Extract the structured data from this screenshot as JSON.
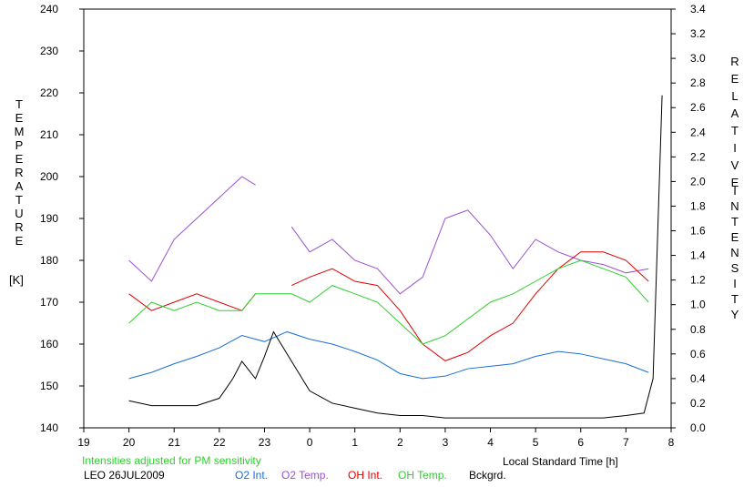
{
  "chart_data": {
    "type": "line",
    "left_axis": {
      "label_letters": [
        "T",
        "E",
        "M",
        "P",
        "E",
        "R",
        "A",
        "T",
        "U",
        "R",
        "E"
      ],
      "unit": "[K]",
      "range": [
        140,
        240
      ],
      "ticks": [
        140,
        150,
        160,
        170,
        180,
        190,
        200,
        210,
        220,
        230,
        240
      ]
    },
    "right_axis": {
      "label_letters_1": [
        "R",
        "E",
        "L",
        "A",
        "T",
        "I",
        "V",
        "E"
      ],
      "label_letters_2": [
        "I",
        "N",
        "T",
        "E",
        "N",
        "S",
        "I",
        "T",
        "Y"
      ],
      "range": [
        0.0,
        3.4
      ],
      "ticks": [
        "0.0",
        "0.2",
        "0.4",
        "0.6",
        "0.8",
        "1.0",
        "1.2",
        "1.4",
        "1.6",
        "1.8",
        "2.0",
        "2.2",
        "2.4",
        "2.6",
        "2.8",
        "3.0",
        "3.2",
        "3.4"
      ]
    },
    "x_axis": {
      "label": "Local Standard Time [h]",
      "range": [
        19,
        32
      ],
      "tick_labels": [
        "19",
        "20",
        "21",
        "22",
        "23",
        "0",
        "1",
        "2",
        "3",
        "4",
        "5",
        "6",
        "7",
        "8"
      ]
    },
    "note": "Intensities adjusted for PM sensitivity",
    "station": "LEO 26JUL2009",
    "series": [
      {
        "name": "O2 Int.",
        "color": "#1a6fd6",
        "axis": "right",
        "x": [
          20.0,
          20.5,
          21.0,
          21.5,
          22.0,
          22.5,
          23.0,
          23.5,
          24.0,
          24.5,
          25.0,
          25.5,
          26.0,
          26.5,
          27.0,
          27.5,
          28.0,
          28.5,
          29.0,
          29.5,
          30.0,
          30.5,
          31.0,
          31.5
        ],
        "y": [
          0.4,
          0.45,
          0.52,
          0.58,
          0.65,
          0.75,
          0.7,
          0.78,
          0.72,
          0.68,
          0.62,
          0.55,
          0.44,
          0.4,
          0.42,
          0.48,
          0.5,
          0.52,
          0.58,
          0.62,
          0.6,
          0.56,
          0.52,
          0.45
        ]
      },
      {
        "name": "O2 Temp.",
        "color": "#9b4fd0",
        "axis": "left",
        "x": [
          20.0,
          20.5,
          21.0,
          21.5,
          22.0,
          22.5,
          22.8,
          23.6,
          24.0,
          24.5,
          25.0,
          25.5,
          26.0,
          26.5,
          27.0,
          27.5,
          28.0,
          28.5,
          29.0,
          29.5,
          30.0,
          30.5,
          31.0,
          31.5
        ],
        "y": [
          180,
          175,
          185,
          190,
          195,
          200,
          198,
          188,
          182,
          185,
          180,
          178,
          172,
          176,
          190,
          192,
          186,
          178,
          185,
          182,
          180,
          179,
          177,
          178
        ],
        "gap_after_x": 22.8
      },
      {
        "name": "OH Int.",
        "color": "#e00000",
        "axis": "left",
        "x": [
          20.0,
          20.5,
          21.0,
          21.5,
          22.0,
          22.5,
          22.8,
          23.6,
          24.0,
          24.5,
          25.0,
          25.5,
          26.0,
          26.5,
          27.0,
          27.5,
          28.0,
          28.5,
          29.0,
          29.5,
          30.0,
          30.5,
          31.0,
          31.5
        ],
        "y": [
          172,
          168,
          170,
          172,
          170,
          168,
          172,
          174,
          176,
          178,
          175,
          174,
          168,
          160,
          156,
          158,
          162,
          165,
          172,
          178,
          182,
          182,
          180,
          175
        ],
        "gap_after_x": 22.8
      },
      {
        "name": "OH Temp.",
        "color": "#2ed02e",
        "axis": "left",
        "x": [
          20.0,
          20.5,
          21.0,
          21.5,
          22.0,
          22.5,
          22.8,
          23.6,
          24.0,
          24.5,
          25.0,
          25.5,
          26.0,
          26.5,
          27.0,
          27.5,
          28.0,
          28.5,
          29.0,
          29.5,
          30.0,
          30.5,
          31.0,
          31.5
        ],
        "y": [
          165,
          170,
          168,
          170,
          168,
          168,
          172,
          172,
          170,
          174,
          172,
          170,
          165,
          160,
          162,
          166,
          170,
          172,
          175,
          178,
          180,
          178,
          176,
          170
        ]
      },
      {
        "name": "Bckgrd.",
        "color": "#000000",
        "axis": "right",
        "x": [
          20.0,
          20.5,
          21.0,
          21.5,
          22.0,
          22.3,
          22.5,
          22.8,
          23.0,
          23.2,
          23.5,
          24.0,
          24.5,
          25.0,
          25.5,
          26.0,
          26.5,
          27.0,
          27.5,
          28.0,
          28.5,
          29.0,
          29.5,
          30.0,
          30.5,
          31.0,
          31.4,
          31.6,
          31.8
        ],
        "y": [
          0.22,
          0.18,
          0.18,
          0.18,
          0.24,
          0.4,
          0.54,
          0.4,
          0.58,
          0.78,
          0.6,
          0.3,
          0.2,
          0.16,
          0.12,
          0.1,
          0.1,
          0.08,
          0.08,
          0.08,
          0.08,
          0.08,
          0.08,
          0.08,
          0.08,
          0.1,
          0.12,
          0.4,
          2.7
        ]
      }
    ]
  }
}
